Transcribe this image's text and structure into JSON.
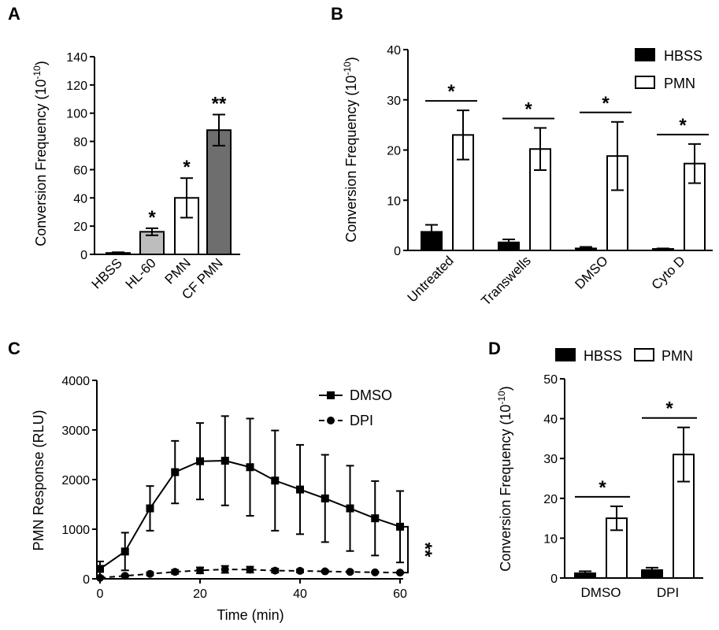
{
  "colors": {
    "hbss": "#000000",
    "hl60": "#bdbdbd",
    "pmn": "#ffffff",
    "cfpmn": "#6e6e6e",
    "axis": "#000000"
  },
  "chart_data": [
    {
      "panel": "A",
      "type": "bar",
      "ylabel": "Conversion Frequency (10^-10)",
      "ylabel_main": "Conversion Frequency (10",
      "ylabel_exp": "-10",
      "ylabel_tail": ")",
      "ylim": [
        0,
        140
      ],
      "yticks": [
        0,
        20,
        40,
        60,
        80,
        100,
        120,
        140
      ],
      "categories": [
        "HBSS",
        "HL-60",
        "PMN",
        "CF PMN"
      ],
      "values": [
        1,
        16,
        40,
        88
      ],
      "errors": [
        0.5,
        2.5,
        14,
        11
      ],
      "bar_colors": [
        "#000000",
        "#bdbdbd",
        "#ffffff",
        "#6e6e6e"
      ],
      "annotations": [
        "",
        "*",
        "*",
        "**"
      ]
    },
    {
      "panel": "B",
      "type": "bar",
      "ylabel": "Conversion Frequency (10^-10)",
      "ylabel_main": "Conversion Frequency (10",
      "ylabel_exp": "-10",
      "ylabel_tail": ")",
      "ylim": [
        0,
        40
      ],
      "yticks": [
        0,
        10,
        20,
        30,
        40
      ],
      "categories": [
        "Untreated",
        "Transwells",
        "DMSO",
        "Cyto D"
      ],
      "series": [
        {
          "name": "HBSS",
          "values": [
            3.7,
            1.6,
            0.4,
            0.3
          ],
          "errors": [
            1.4,
            0.6,
            0.3,
            0.1
          ]
        },
        {
          "name": "PMN",
          "values": [
            23,
            20.2,
            18.8,
            17.3
          ],
          "errors": [
            4.9,
            4.2,
            6.8,
            3.9
          ]
        }
      ],
      "legend": [
        "HBSS",
        "PMN"
      ],
      "legend_position": "top-right",
      "significance": [
        "*",
        "*",
        "*",
        "*"
      ]
    },
    {
      "panel": "C",
      "type": "line",
      "xlabel": "Time (min)",
      "ylabel": "PMN Response (RLU)",
      "xlim": [
        0,
        60
      ],
      "ylim": [
        0,
        4000
      ],
      "xticks": [
        0,
        20,
        40,
        60
      ],
      "yticks": [
        0,
        1000,
        2000,
        3000,
        4000
      ],
      "x": [
        0,
        5,
        10,
        15,
        20,
        25,
        30,
        35,
        40,
        45,
        50,
        55,
        60
      ],
      "series": [
        {
          "name": "DMSO",
          "marker": "square",
          "dash": "solid",
          "values": [
            200,
            550,
            1420,
            2150,
            2370,
            2380,
            2250,
            1980,
            1800,
            1620,
            1420,
            1220,
            1050
          ],
          "errors": [
            150,
            380,
            450,
            630,
            770,
            900,
            980,
            1010,
            900,
            880,
            860,
            750,
            720
          ]
        },
        {
          "name": "DPI",
          "marker": "circle",
          "dash": "dashed",
          "values": [
            20,
            60,
            100,
            140,
            170,
            190,
            185,
            165,
            160,
            150,
            140,
            130,
            125
          ],
          "errors": [
            10,
            20,
            30,
            40,
            60,
            70,
            60,
            40,
            30,
            20,
            15,
            10,
            10
          ]
        }
      ],
      "legend": [
        "DMSO",
        "DPI"
      ],
      "legend_position": "top-right",
      "significance": "**"
    },
    {
      "panel": "D",
      "type": "bar",
      "ylabel": "Conversion Frequency (10^-10)",
      "ylabel_main": "Conversion Frequency (10",
      "ylabel_exp": "-10",
      "ylabel_tail": ")",
      "ylim": [
        0,
        50
      ],
      "yticks": [
        0,
        10,
        20,
        30,
        40,
        50
      ],
      "categories": [
        "DMSO",
        "DPI"
      ],
      "series": [
        {
          "name": "HBSS",
          "values": [
            1.2,
            2.0
          ],
          "errors": [
            0.5,
            0.6
          ]
        },
        {
          "name": "PMN",
          "values": [
            15,
            31
          ],
          "errors": [
            3,
            6.8
          ]
        }
      ],
      "legend": [
        "HBSS",
        "PMN"
      ],
      "legend_position": "top",
      "significance": [
        "*",
        "*"
      ]
    }
  ]
}
